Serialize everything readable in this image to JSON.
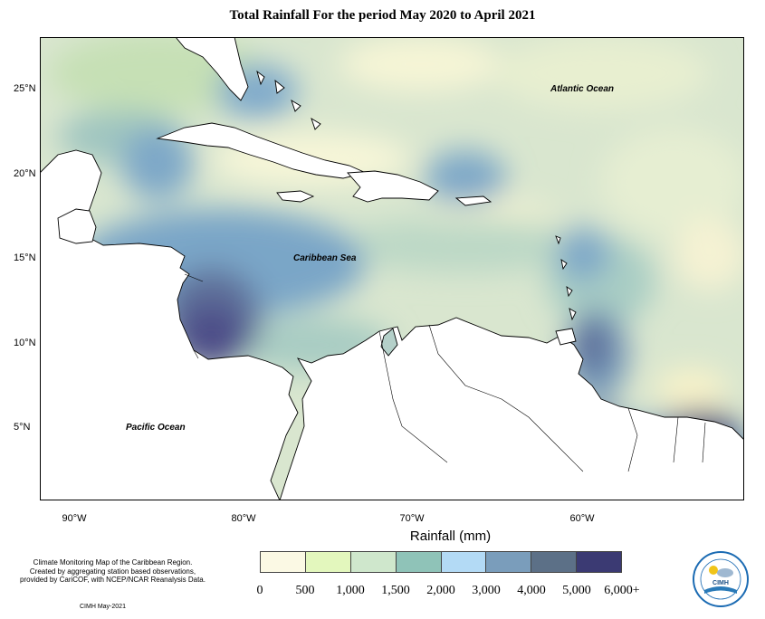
{
  "title": "Total Rainfall For the period May 2020 to April 2021",
  "y_ticks": [
    "25°N",
    "20°N",
    "15°N",
    "10°N",
    "5°N"
  ],
  "x_ticks": [
    "90°W",
    "80°W",
    "70°W",
    "60°W"
  ],
  "labels": {
    "atlantic": "Atlantic Ocean",
    "caribbean": "Caribbean Sea",
    "pacific": "Pacific Ocean"
  },
  "xlabel": "Rainfall (mm)",
  "legend": {
    "colors": [
      "#fbf9e4",
      "#e3f7bd",
      "#cfe7cc",
      "#8fc3b8",
      "#b3daf5",
      "#7a9dbb",
      "#5c7087",
      "#3b3a73"
    ],
    "ticks": [
      "0",
      "500",
      "1,000",
      "1,500",
      "2,000",
      "3,000",
      "4,000",
      "5,000",
      "6,000+"
    ]
  },
  "footnote": "Climate Monitoring Map of the Caribbean Region. Created by aggregating station based observations, provided by CariCOF, with NCEP/NCAR Reanalysis Data.",
  "credit": "CIMH May-2021",
  "logo_text": "CIMH",
  "colors": {
    "sea_base": "#d9e6cf",
    "land": "#ffffff",
    "coast": "#000000"
  }
}
